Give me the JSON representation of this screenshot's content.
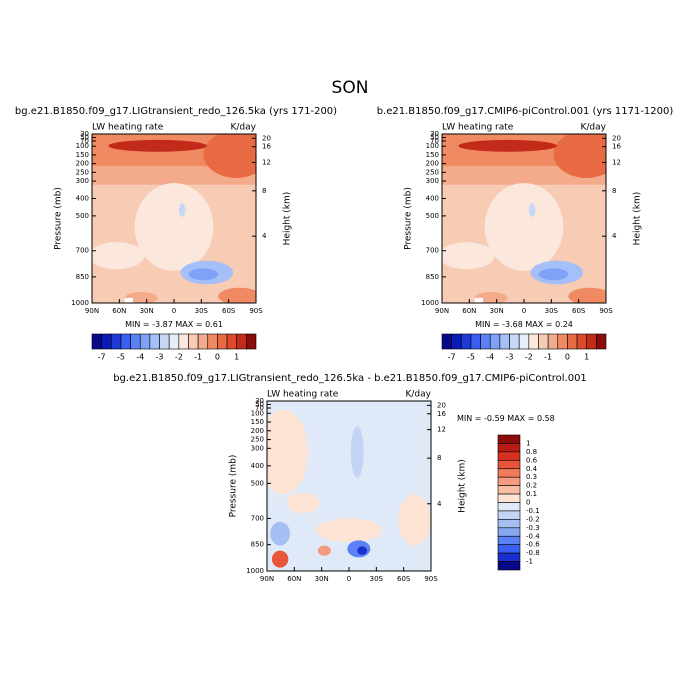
{
  "title": "SON",
  "chart_data": [
    {
      "type": "contour",
      "title": "bg.e21.B1850.f09_g17.LIGtransient_redo_126.5ka (yrs 171-200)",
      "left_label": "LW heating rate",
      "right_label": "K/day",
      "ylabel": "Pressure (mb)",
      "y2label": "Height (km)",
      "xlim": [
        90,
        -90
      ],
      "xticks": [
        {
          "value": 90,
          "label": "90N"
        },
        {
          "value": 60,
          "label": "60N"
        },
        {
          "value": 30,
          "label": "30N"
        },
        0,
        {
          "value": -30,
          "label": "30S"
        },
        {
          "value": -60,
          "label": "60S"
        },
        {
          "value": -90,
          "label": "90S"
        }
      ],
      "ylim": [
        1000,
        30
      ],
      "yticks": [
        1000,
        850,
        700,
        500,
        400,
        300,
        250,
        200,
        150,
        100,
        70,
        50,
        30
      ],
      "y2ticks": [
        4,
        8,
        12,
        16,
        20
      ],
      "min_label": "MIN =",
      "min": -3.87,
      "max_label": "MAX =",
      "max": 0.61,
      "colorbar": {
        "orientation": "horizontal",
        "colors": [
          "#08088a",
          "#0a1ab8",
          "#1f3ad6",
          "#3a5ef0",
          "#5a82f5",
          "#7fa1f7",
          "#a5bff8",
          "#c8d7f8",
          "#e6eef8",
          "#fbe7dc",
          "#f8cbb4",
          "#f4ab8b",
          "#ef8a63",
          "#e86a43",
          "#dc4a2b",
          "#c22a1a",
          "#8c0c0c"
        ],
        "ticks": [
          -7,
          -5,
          -4,
          -3,
          -2,
          -1,
          0,
          1
        ]
      }
    },
    {
      "type": "contour",
      "title": "b.e21.B1850.f09_g17.CMIP6-piControl.001 (yrs 1171-1200)",
      "left_label": "LW heating rate",
      "right_label": "K/day",
      "ylabel": "Pressure (mb)",
      "y2label": "Height (km)",
      "xlim": [
        90,
        -90
      ],
      "xticks": [
        {
          "value": 90,
          "label": "90N"
        },
        {
          "value": 60,
          "label": "60N"
        },
        {
          "value": 30,
          "label": "30N"
        },
        0,
        {
          "value": -30,
          "label": "30S"
        },
        {
          "value": -60,
          "label": "60S"
        },
        {
          "value": -90,
          "label": "90S"
        }
      ],
      "ylim": [
        1000,
        30
      ],
      "yticks": [
        1000,
        850,
        700,
        500,
        400,
        300,
        250,
        200,
        150,
        100,
        70,
        50,
        30
      ],
      "y2ticks": [
        4,
        8,
        12,
        16,
        20
      ],
      "min_label": "MIN =",
      "min": -3.68,
      "max_label": "MAX =",
      "max": 0.24,
      "colorbar": {
        "orientation": "horizontal",
        "colors": [
          "#08088a",
          "#0a1ab8",
          "#1f3ad6",
          "#3a5ef0",
          "#5a82f5",
          "#7fa1f7",
          "#a5bff8",
          "#c8d7f8",
          "#e6eef8",
          "#fbe7dc",
          "#f8cbb4",
          "#f4ab8b",
          "#ef8a63",
          "#e86a43",
          "#dc4a2b",
          "#c22a1a",
          "#8c0c0c"
        ],
        "ticks": [
          -7,
          -5,
          -4,
          -3,
          -2,
          -1,
          0,
          1
        ]
      }
    },
    {
      "type": "contour",
      "title": "bg.e21.B1850.f09_g17.LIGtransient_redo_126.5ka - b.e21.B1850.f09_g17.CMIP6-piControl.001",
      "left_label": "LW heating rate",
      "right_label": "K/day",
      "ylabel": "Pressure (mb)",
      "y2label": "Height (km)",
      "xlim": [
        90,
        -90
      ],
      "xticks": [
        {
          "value": 90,
          "label": "90N"
        },
        {
          "value": 60,
          "label": "60N"
        },
        {
          "value": 30,
          "label": "30N"
        },
        0,
        {
          "value": -30,
          "label": "30S"
        },
        {
          "value": -60,
          "label": "60S"
        },
        {
          "value": -90,
          "label": "90S"
        }
      ],
      "ylim": [
        1000,
        30
      ],
      "yticks": [
        1000,
        850,
        700,
        500,
        400,
        300,
        250,
        200,
        150,
        100,
        70,
        50,
        30
      ],
      "y2ticks": [
        4,
        8,
        12,
        16,
        20
      ],
      "min_label": "MIN =",
      "min": -0.59,
      "max_label": "MAX =",
      "max": 0.58,
      "colorbar": {
        "orientation": "vertical",
        "colors": [
          "#8c0c0c",
          "#b81c14",
          "#d7301f",
          "#e8553a",
          "#f07a5a",
          "#f59c80",
          "#f8bda4",
          "#fde3d4",
          "#dfe9f8",
          "#c3d4f5",
          "#a5bff2",
          "#86a6ef",
          "#5a82f5",
          "#3a5ef0",
          "#1a2fd0",
          "#08088a"
        ],
        "ticks": [
          1,
          0.8,
          0.6,
          0.4,
          0.3,
          0.2,
          0.1,
          0,
          -0.1,
          -0.2,
          -0.3,
          -0.4,
          -0.6,
          -0.8,
          -1
        ]
      }
    }
  ]
}
